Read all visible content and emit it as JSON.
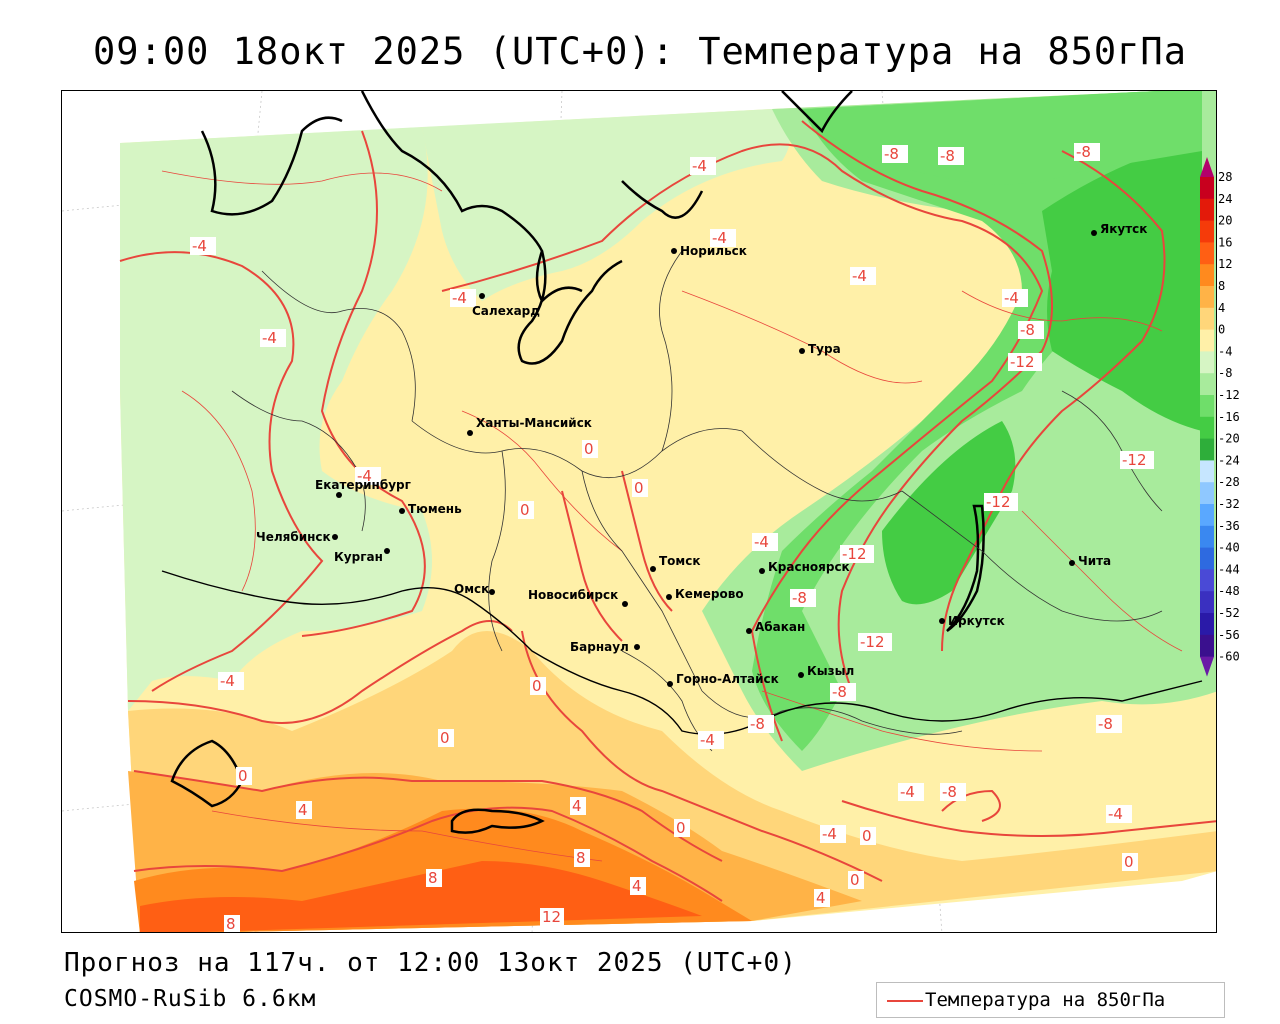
{
  "title": "09:00 18окт 2025 (UTC+0): Температура на 850гПа",
  "footer": {
    "forecast": "Прогноз на 117ч. от 12:00 13окт 2025 (UTC+0)",
    "model": "COSMO-RuSib 6.6км",
    "legend_label": "Температура на 850гПа",
    "legend_color": "#e8463c"
  },
  "colorbar": {
    "ticks": [
      "28",
      "24",
      "20",
      "16",
      "12",
      "8",
      "4",
      "0",
      "-4",
      "-8",
      "-12",
      "-16",
      "-20",
      "-24",
      "-28",
      "-32",
      "-36",
      "-40",
      "-44",
      "-48",
      "-52",
      "-56",
      "-60"
    ],
    "colors": [
      "#b3006b",
      "#c8001e",
      "#e31a0a",
      "#f53b0a",
      "#ff5f14",
      "#ff8a1e",
      "#ffb347",
      "#ffd67a",
      "#fff0a8",
      "#d6f5c4",
      "#a8eb9c",
      "#6fde6a",
      "#44cc44",
      "#2eae3a",
      "#c6e6ff",
      "#8fc8ff",
      "#5aa8ff",
      "#3a88f0",
      "#2e6ae0",
      "#4a4ad6",
      "#3a30c0",
      "#2a1aa8",
      "#3a108e",
      "#6a1aa6"
    ]
  },
  "cities": [
    {
      "name": "Салехард"
    },
    {
      "name": "Норильск"
    },
    {
      "name": "Тура"
    },
    {
      "name": "Якутск"
    },
    {
      "name": "Ханты-Мансийск"
    },
    {
      "name": "Екатеринбург"
    },
    {
      "name": "Тюмень"
    },
    {
      "name": "Челябинск"
    },
    {
      "name": "Курган"
    },
    {
      "name": "Омск"
    },
    {
      "name": "Томск"
    },
    {
      "name": "Новосибирск"
    },
    {
      "name": "Кемерово"
    },
    {
      "name": "Красноярск"
    },
    {
      "name": "Абакан"
    },
    {
      "name": "Барнаул"
    },
    {
      "name": "Горно-Алтайск"
    },
    {
      "name": "Кызыл"
    },
    {
      "name": "Иркутск"
    },
    {
      "name": "Чита"
    }
  ],
  "isolines": [
    {
      "t": "-4"
    },
    {
      "t": "-4"
    },
    {
      "t": "-4"
    },
    {
      "t": "-4"
    },
    {
      "t": "-4"
    },
    {
      "t": "-4"
    },
    {
      "t": "-8"
    },
    {
      "t": "-8"
    },
    {
      "t": "-8"
    },
    {
      "t": "-4"
    },
    {
      "t": "-4"
    },
    {
      "t": "-8"
    },
    {
      "t": "-12"
    },
    {
      "t": "-12"
    },
    {
      "t": "-12"
    },
    {
      "t": "-4"
    },
    {
      "t": "-12"
    },
    {
      "t": "-8"
    },
    {
      "t": "-12"
    },
    {
      "t": "-8"
    },
    {
      "t": "-8"
    },
    {
      "t": "-4"
    },
    {
      "t": "-8"
    },
    {
      "t": "-4"
    },
    {
      "t": "-8"
    },
    {
      "t": "-4"
    },
    {
      "t": "-4"
    },
    {
      "t": "-4"
    },
    {
      "t": "0"
    },
    {
      "t": "0"
    },
    {
      "t": "0"
    },
    {
      "t": "0"
    },
    {
      "t": "0"
    },
    {
      "t": "0"
    },
    {
      "t": "0"
    },
    {
      "t": "0"
    },
    {
      "t": "0"
    },
    {
      "t": "0"
    },
    {
      "t": "4"
    },
    {
      "t": "4"
    },
    {
      "t": "4"
    },
    {
      "t": "4"
    },
    {
      "t": "4"
    },
    {
      "t": "8"
    },
    {
      "t": "8"
    },
    {
      "t": "8"
    },
    {
      "t": "12"
    }
  ]
}
